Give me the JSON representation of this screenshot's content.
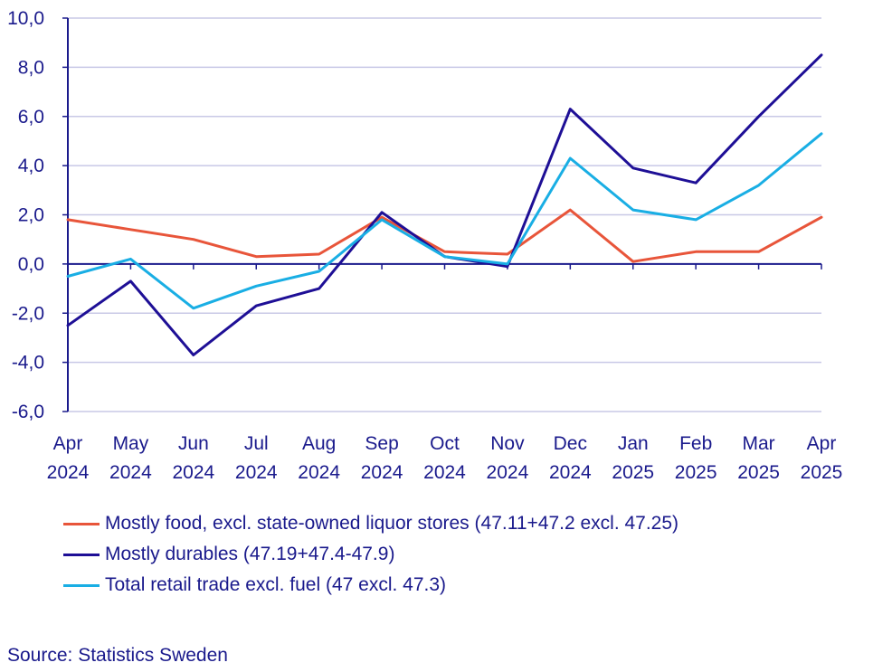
{
  "chart_data": {
    "type": "line",
    "title": "",
    "xlabel": "",
    "ylabel": "",
    "ylim": [
      -6,
      10
    ],
    "yticks": [
      "10,0",
      "8,0",
      "6,0",
      "4,0",
      "2,0",
      "0,0",
      "-2,0",
      "-4,0",
      "-6,0"
    ],
    "ytick_values": [
      10,
      8,
      6,
      4,
      2,
      0,
      -2,
      -4,
      -6
    ],
    "grid": true,
    "legend_position": "bottom",
    "categories": [
      {
        "month": "Apr",
        "year": "2024"
      },
      {
        "month": "May",
        "year": "2024"
      },
      {
        "month": "Jun",
        "year": "2024"
      },
      {
        "month": "Jul",
        "year": "2024"
      },
      {
        "month": "Aug",
        "year": "2024"
      },
      {
        "month": "Sep",
        "year": "2024"
      },
      {
        "month": "Oct",
        "year": "2024"
      },
      {
        "month": "Nov",
        "year": "2024"
      },
      {
        "month": "Dec",
        "year": "2024"
      },
      {
        "month": "Jan",
        "year": "2025"
      },
      {
        "month": "Feb",
        "year": "2025"
      },
      {
        "month": "Mar",
        "year": "2025"
      },
      {
        "month": "Apr",
        "year": "2025"
      }
    ],
    "series": [
      {
        "name": "Mostly food, excl. state-owned liquor stores (47.11+47.2 excl. 47.25)",
        "color": "#e8553a",
        "values": [
          1.8,
          1.4,
          1.0,
          0.3,
          0.4,
          1.9,
          0.5,
          0.4,
          2.2,
          0.1,
          0.5,
          0.5,
          1.9
        ]
      },
      {
        "name": "Mostly durables (47.19+47.4-47.9)",
        "color": "#1e0f96",
        "values": [
          -2.5,
          -0.7,
          -3.7,
          -1.7,
          -1.0,
          2.1,
          0.3,
          -0.1,
          6.3,
          3.9,
          3.3,
          6.0,
          8.5
        ]
      },
      {
        "name": "Total retail trade excl. fuel (47 excl. 47.3)",
        "color": "#19aee4",
        "values": [
          -0.5,
          0.2,
          -1.8,
          -0.9,
          -0.3,
          1.8,
          0.3,
          0.0,
          4.3,
          2.2,
          1.8,
          3.2,
          5.3
        ]
      }
    ]
  },
  "colors": {
    "axis": "#1a1a8c",
    "grid": "#c8c8e6"
  },
  "source": "Source: Statistics Sweden"
}
